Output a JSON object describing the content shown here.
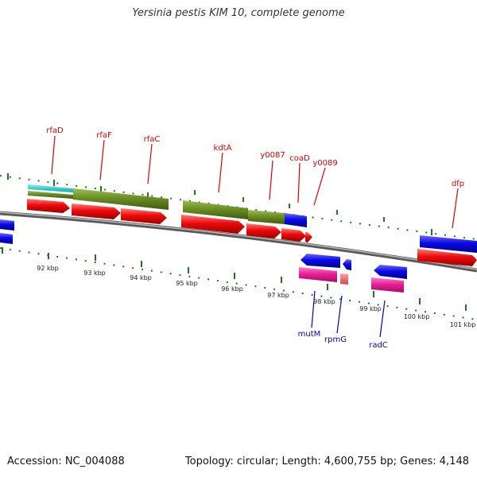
{
  "title": "Yersinia pestis KIM 10, complete genome",
  "footer": {
    "accession": "Accession: NC_004088",
    "info": "Topology: circular; Length: 4,600,755 bp; Genes: 4,148"
  },
  "colors": {
    "background": "#ffffff",
    "dot_track": "#1c7a1c",
    "backbone": "#7a7a7a",
    "forward_label": "#dd0000",
    "reverse_label": "#0000cc",
    "blue_gene": "#0a0ae6",
    "red_gene": "#ee0a0a",
    "olive_gene": "#6b8e23",
    "cyan_gene": "#1ec8c8",
    "magenta_gene": "#e8209a",
    "salmon_gene": "#f06a6a"
  },
  "scale": {
    "ticks": [
      "92 kbp",
      "93 kbp",
      "94 kbp",
      "95 kbp",
      "96 kbp",
      "97 kbp",
      "98 kbp",
      "99 kbp",
      "100 kbp",
      "101 kbp"
    ]
  },
  "forward_labels": [
    "rfaD",
    "rfaF",
    "rfaC",
    "kdtA",
    "y0087",
    "coaD",
    "y0089",
    "dfp"
  ],
  "reverse_labels": [
    "mutM",
    "rpmG",
    "radC"
  ]
}
